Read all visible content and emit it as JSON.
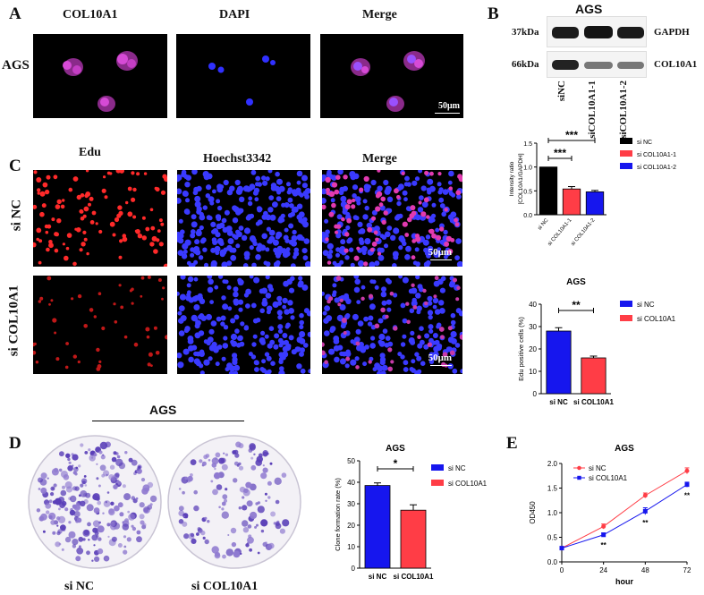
{
  "panels": {
    "a": "A",
    "b": "B",
    "c": "C",
    "d": "D",
    "e": "E"
  },
  "panel_a": {
    "col_labels": [
      "COL10A1",
      "DAPI",
      "Merge"
    ],
    "row_label": "AGS",
    "scale_bar": "50μm"
  },
  "panel_b": {
    "title": "AGS",
    "bands": [
      {
        "mw": "37kDa",
        "protein": "GAPDH"
      },
      {
        "mw": "66kDa",
        "protein": "COL10A1"
      }
    ],
    "lanes": [
      "siNC",
      "siCOL10A1-1",
      "siCOL10A1-2"
    ]
  },
  "panel_c": {
    "col_labels": [
      "Edu",
      "Hoechst3342",
      "Merge"
    ],
    "row_labels": [
      "si NC",
      "si COL10A1"
    ],
    "scale_bar": "50μm"
  },
  "panel_d": {
    "group_label": "AGS",
    "plate_labels": [
      "si NC",
      "si COL10A1"
    ]
  },
  "colors": {
    "blue": "#1616ee",
    "red": "#ff3d46",
    "black": "#000000",
    "violet": "#6a4fc2",
    "purple": "#b03ad0"
  },
  "chart_data": [
    {
      "id": "ratio",
      "type": "bar",
      "title": "",
      "categories": [
        "si NC",
        "si COL10A1-1",
        "si COL10A1-2"
      ],
      "values": [
        1.0,
        0.54,
        0.48
      ],
      "errors": [
        0.0,
        0.05,
        0.03
      ],
      "colors": [
        "#000000",
        "#ff3d46",
        "#1616ee"
      ],
      "ylabel": "Intensity ratio\n[COL10A1/GAPDH]",
      "ylim": [
        0,
        1.5
      ],
      "yticks": [
        "0.0",
        "0.5",
        "1.0",
        "1.5"
      ],
      "significance": [
        "***",
        "***"
      ],
      "legend": [
        "si NC",
        "si COL10A1-1",
        "si COL10A1-2"
      ]
    },
    {
      "id": "edu",
      "type": "bar",
      "title": "AGS",
      "categories": [
        "si NC",
        "si COL10A1"
      ],
      "values": [
        28.0,
        16.0
      ],
      "errors": [
        1.5,
        0.8
      ],
      "colors": [
        "#1616ee",
        "#ff3d46"
      ],
      "ylabel": "Edu positive cells (%)",
      "ylim": [
        0,
        40
      ],
      "yticks": [
        "0",
        "10",
        "20",
        "30",
        "40"
      ],
      "significance": [
        "**"
      ],
      "legend": [
        "si NC",
        "si COL10A1"
      ]
    },
    {
      "id": "clone",
      "type": "bar",
      "title": "AGS",
      "categories": [
        "si NC",
        "si COL10A1"
      ],
      "values": [
        38.5,
        27.0
      ],
      "errors": [
        1.2,
        2.5
      ],
      "colors": [
        "#1616ee",
        "#ff3d46"
      ],
      "ylabel": "Clone formation rate (%)",
      "ylim": [
        0,
        50
      ],
      "yticks": [
        "0",
        "10",
        "20",
        "30",
        "40",
        "50"
      ],
      "significance": [
        "*"
      ],
      "legend": [
        "si NC",
        "si COL10A1"
      ]
    },
    {
      "id": "od",
      "type": "line",
      "title": "AGS",
      "x": [
        0,
        24,
        48,
        72
      ],
      "series": [
        {
          "name": "si NC",
          "values": [
            0.28,
            0.72,
            1.35,
            1.85
          ],
          "errors": [
            0.02,
            0.05,
            0.05,
            0.06
          ],
          "color": "#ff3d46"
        },
        {
          "name": "si COL10A1",
          "values": [
            0.28,
            0.55,
            1.03,
            1.57
          ],
          "errors": [
            0.02,
            0.04,
            0.07,
            0.05
          ],
          "color": "#1616ee"
        }
      ],
      "xlabel": "hour",
      "ylabel": "OD450",
      "xticks": [
        "0",
        "24",
        "48",
        "72"
      ],
      "yticks": [
        "0.0",
        "0.5",
        "1.0",
        "1.5",
        "2.0"
      ],
      "ylim": [
        0,
        2.0
      ],
      "xlim": [
        0,
        72
      ],
      "annotations": [
        "**",
        "**",
        "**"
      ]
    }
  ]
}
